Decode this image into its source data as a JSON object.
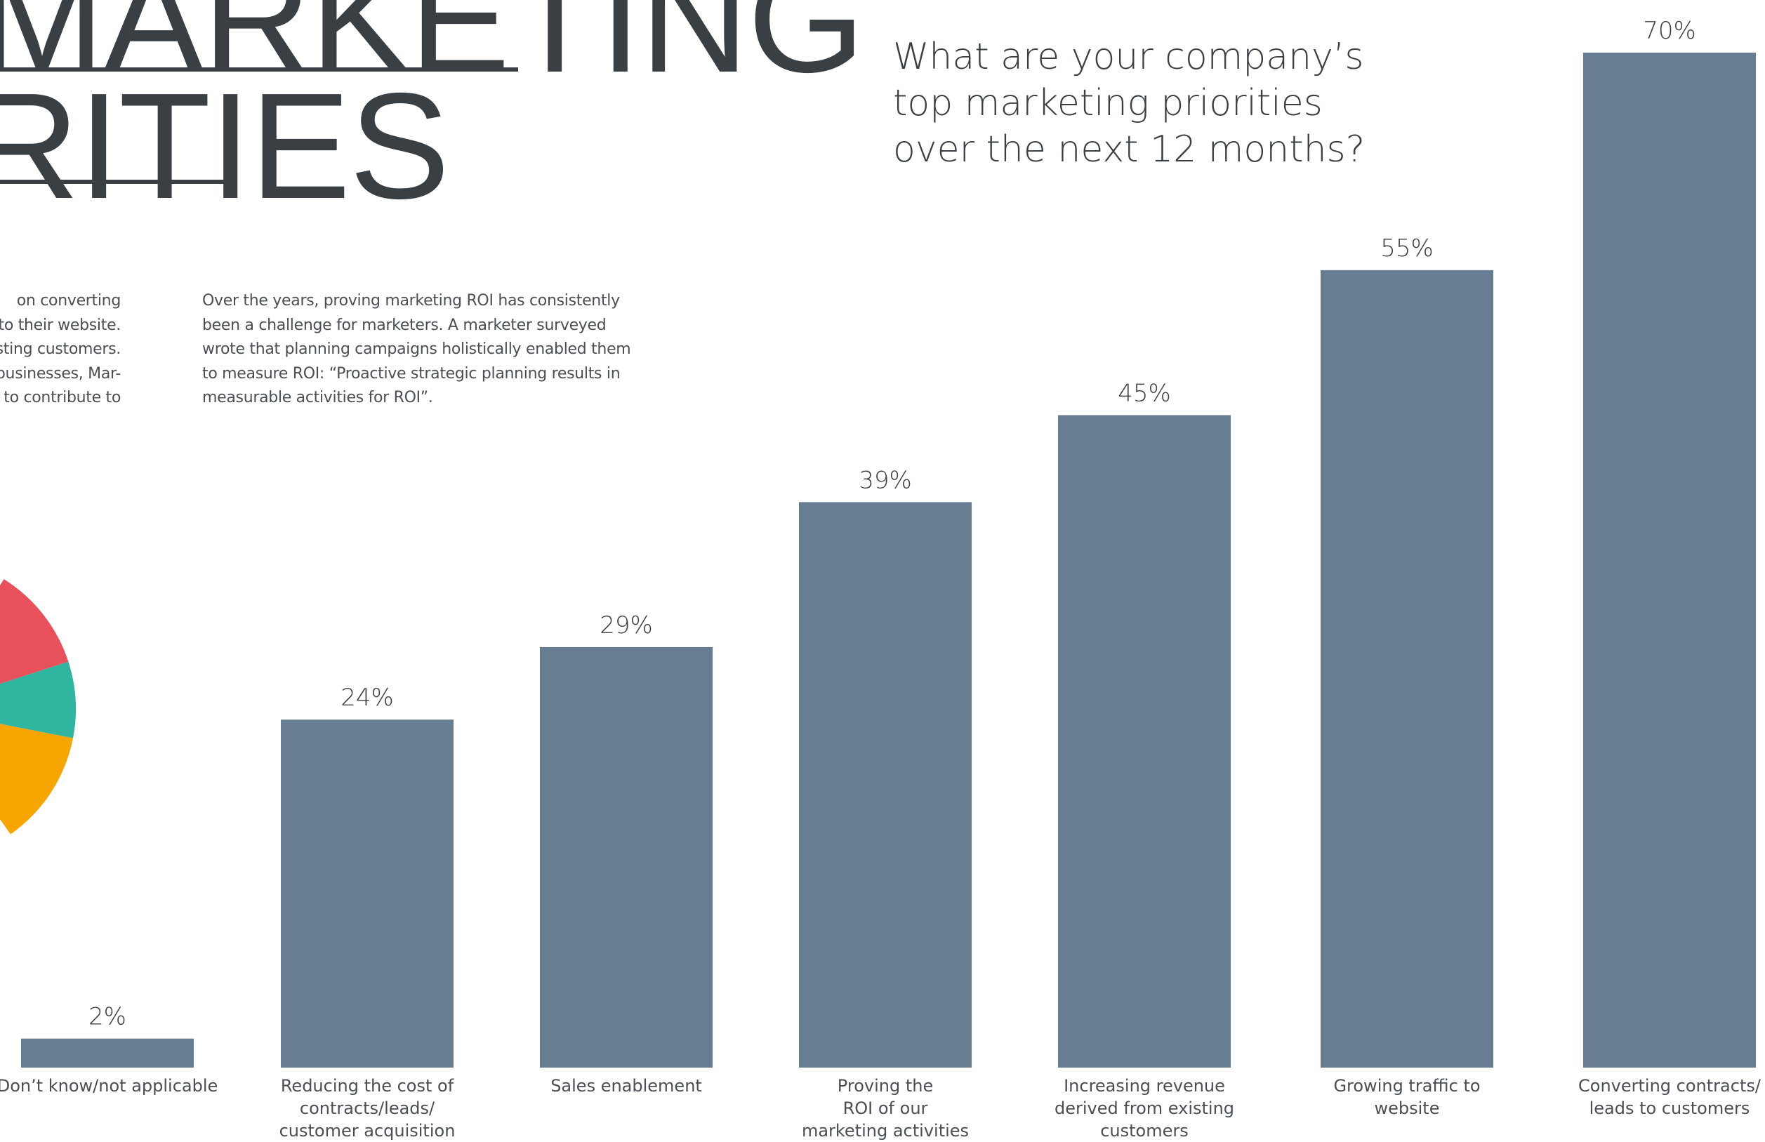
{
  "heading": {
    "line1": "MARKETING",
    "line2": "RITIES"
  },
  "question": {
    "line1": "What are your company’s",
    "line2": "top marketing priorities",
    "line3": "over the next 12 months?"
  },
  "left_text": {
    "line1": "on converting",
    "line2": "c to their website.",
    "line3": "xisting customers.",
    "line4": "r businesses, Mar-",
    "line5": "y to contribute to"
  },
  "roi_text": {
    "line1": "Over the years, proving marketing ROI has consistently",
    "line2": "been a challenge for marketers. A marketer surveyed",
    "line3": "wrote that planning campaigns holistically enabled them",
    "line4": "to measure ROI:   “Proactive strategic planning results in",
    "line5": "measurable activities for ROI”."
  },
  "donut": {
    "segments": [
      {
        "color": "#e8505b"
      },
      {
        "color": "#2fb5a0"
      },
      {
        "color": "#f7a500"
      }
    ]
  },
  "chart_data": {
    "type": "bar",
    "title": "What are your company’s top marketing priorities over the next 12 months?",
    "xlabel": "",
    "ylabel": "",
    "bar_color": "#677d91",
    "grid": false,
    "categories": [
      [
        "Don’t know/not applicable"
      ],
      [
        "Reducing the cost of",
        "contracts/leads/",
        "customer acquisition"
      ],
      [
        "Sales enablement"
      ],
      [
        "Proving the",
        "ROI of our",
        "marketing activities"
      ],
      [
        "Increasing revenue",
        "derived from existing",
        "customers"
      ],
      [
        "Growing traffic to",
        "website"
      ],
      [
        "Converting contracts/",
        "leads to customers"
      ]
    ],
    "values": [
      2,
      24,
      29,
      39,
      45,
      55,
      70
    ],
    "value_labels": [
      "2%",
      "24%",
      "29%",
      "39%",
      "45%",
      "55%",
      "70%"
    ],
    "ylim": [
      0,
      70
    ]
  }
}
